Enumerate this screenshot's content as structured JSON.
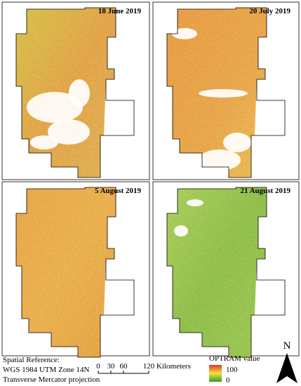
{
  "panels": [
    {
      "title": "18 June 2019"
    },
    {
      "title": "20 July 2019"
    },
    {
      "title": "5 August 2019"
    },
    {
      "title": "21 August 2019"
    }
  ],
  "spatial_reference": [
    "Spatial Reference:",
    "WGS 1984 UTM Zone 14N",
    "Transverse Mercator projection"
  ],
  "scale_bar": {
    "ticks": [
      0,
      30,
      60,
      120
    ],
    "unit": "Kilometers"
  },
  "legend": {
    "title": "OPTRAM value",
    "max": 100,
    "min": 0
  },
  "north": "N"
}
